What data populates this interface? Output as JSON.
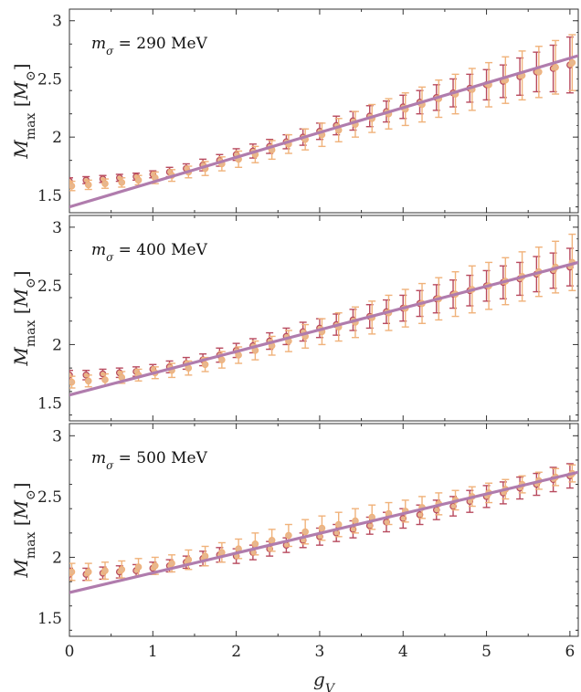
{
  "chart_data": [
    {
      "type": "scatter",
      "annotation": {
        "var": "m",
        "sub": "σ",
        "text": " = 290 MeV"
      },
      "ylabel": {
        "var": "M",
        "sub": "max",
        "unit_open": " [",
        "unit_var": "M",
        "unit_sub": "⊙",
        "unit_close": "]"
      },
      "xlim": [
        0,
        6.1
      ],
      "ylim": [
        1.35,
        3.1
      ],
      "yticks": [
        "1.5",
        "2",
        "2.5",
        "3"
      ],
      "fit_line": {
        "x": [
          0,
          6.1
        ],
        "y": [
          1.4,
          2.7
        ]
      },
      "series": [
        {
          "x": [
            0,
            0.2,
            0.4,
            0.6,
            0.8,
            1.0,
            1.2,
            1.4,
            1.6,
            1.8,
            2.0,
            2.2,
            2.4,
            2.6,
            2.8,
            3.0,
            3.2,
            3.4,
            3.6,
            3.8,
            4.0,
            4.2,
            4.4,
            4.6,
            4.8,
            5.0,
            5.2,
            5.4,
            5.6,
            5.8,
            6.0
          ],
          "y": [
            1.62,
            1.63,
            1.64,
            1.65,
            1.66,
            1.68,
            1.7,
            1.73,
            1.76,
            1.8,
            1.85,
            1.88,
            1.92,
            1.96,
            2.0,
            2.05,
            2.1,
            2.14,
            2.18,
            2.22,
            2.26,
            2.3,
            2.34,
            2.38,
            2.42,
            2.45,
            2.48,
            2.52,
            2.56,
            2.59,
            2.62
          ],
          "err": [
            0.03,
            0.03,
            0.03,
            0.03,
            0.03,
            0.03,
            0.04,
            0.04,
            0.05,
            0.05,
            0.05,
            0.06,
            0.06,
            0.06,
            0.07,
            0.07,
            0.08,
            0.08,
            0.09,
            0.09,
            0.1,
            0.1,
            0.11,
            0.12,
            0.12,
            0.13,
            0.14,
            0.16,
            0.17,
            0.2,
            0.24
          ]
        },
        {
          "x": [
            0,
            0.2,
            0.4,
            0.6,
            0.8,
            1.0,
            1.2,
            1.4,
            1.6,
            1.8,
            2.0,
            2.2,
            2.4,
            2.6,
            2.8,
            3.0,
            3.2,
            3.4,
            3.6,
            3.8,
            4.0,
            4.2,
            4.4,
            4.6,
            4.8,
            5.0,
            5.2,
            5.4,
            5.6,
            5.8,
            6.0
          ],
          "y": [
            1.58,
            1.59,
            1.6,
            1.61,
            1.63,
            1.65,
            1.67,
            1.7,
            1.73,
            1.77,
            1.81,
            1.85,
            1.89,
            1.94,
            1.98,
            2.02,
            2.06,
            2.11,
            2.16,
            2.2,
            2.24,
            2.28,
            2.33,
            2.37,
            2.41,
            2.45,
            2.49,
            2.53,
            2.56,
            2.6,
            2.64
          ],
          "err": [
            0.04,
            0.04,
            0.04,
            0.04,
            0.04,
            0.05,
            0.05,
            0.05,
            0.06,
            0.06,
            0.07,
            0.07,
            0.08,
            0.08,
            0.09,
            0.1,
            0.1,
            0.11,
            0.12,
            0.13,
            0.14,
            0.15,
            0.16,
            0.17,
            0.18,
            0.19,
            0.2,
            0.21,
            0.22,
            0.23,
            0.24
          ]
        }
      ]
    },
    {
      "type": "scatter",
      "annotation": {
        "var": "m",
        "sub": "σ",
        "text": " = 400 MeV"
      },
      "ylabel": {
        "var": "M",
        "sub": "max",
        "unit_open": " [",
        "unit_var": "M",
        "unit_sub": "⊙",
        "unit_close": "]"
      },
      "xlim": [
        0,
        6.1
      ],
      "ylim": [
        1.35,
        3.1
      ],
      "yticks": [
        "1.5",
        "2",
        "2.5",
        "3"
      ],
      "fit_line": {
        "x": [
          0,
          6.1
        ],
        "y": [
          1.57,
          2.7
        ]
      },
      "series": [
        {
          "x": [
            0,
            0.2,
            0.4,
            0.6,
            0.8,
            1.0,
            1.2,
            1.4,
            1.6,
            1.8,
            2.0,
            2.2,
            2.4,
            2.6,
            2.8,
            3.0,
            3.2,
            3.4,
            3.6,
            3.8,
            4.0,
            4.2,
            4.4,
            4.6,
            4.8,
            5.0,
            5.2,
            5.4,
            5.6,
            5.8,
            6.0
          ],
          "y": [
            1.74,
            1.74,
            1.75,
            1.76,
            1.77,
            1.79,
            1.81,
            1.84,
            1.87,
            1.91,
            1.95,
            1.99,
            2.03,
            2.07,
            2.11,
            2.14,
            2.17,
            2.21,
            2.24,
            2.28,
            2.31,
            2.35,
            2.39,
            2.43,
            2.46,
            2.5,
            2.53,
            2.56,
            2.6,
            2.63,
            2.66
          ],
          "err": [
            0.04,
            0.04,
            0.04,
            0.04,
            0.04,
            0.04,
            0.05,
            0.05,
            0.05,
            0.06,
            0.06,
            0.06,
            0.07,
            0.07,
            0.08,
            0.08,
            0.09,
            0.09,
            0.1,
            0.1,
            0.11,
            0.11,
            0.12,
            0.12,
            0.13,
            0.13,
            0.14,
            0.14,
            0.15,
            0.15,
            0.16
          ]
        },
        {
          "x": [
            0,
            0.2,
            0.4,
            0.6,
            0.8,
            1.0,
            1.2,
            1.4,
            1.6,
            1.8,
            2.0,
            2.2,
            2.4,
            2.6,
            2.8,
            3.0,
            3.2,
            3.4,
            3.6,
            3.8,
            4.0,
            4.2,
            4.4,
            4.6,
            4.8,
            5.0,
            5.2,
            5.4,
            5.6,
            5.8,
            6.0
          ],
          "y": [
            1.68,
            1.69,
            1.7,
            1.72,
            1.74,
            1.76,
            1.78,
            1.8,
            1.83,
            1.87,
            1.91,
            1.95,
            1.99,
            2.03,
            2.07,
            2.11,
            2.15,
            2.19,
            2.23,
            2.27,
            2.31,
            2.35,
            2.39,
            2.43,
            2.47,
            2.5,
            2.54,
            2.58,
            2.62,
            2.66,
            2.7
          ],
          "err": [
            0.05,
            0.05,
            0.05,
            0.05,
            0.05,
            0.05,
            0.06,
            0.06,
            0.06,
            0.07,
            0.07,
            0.08,
            0.08,
            0.09,
            0.1,
            0.11,
            0.12,
            0.13,
            0.14,
            0.15,
            0.16,
            0.17,
            0.18,
            0.19,
            0.2,
            0.2,
            0.2,
            0.21,
            0.21,
            0.22,
            0.24
          ]
        }
      ]
    },
    {
      "type": "scatter",
      "annotation": {
        "var": "m",
        "sub": "σ",
        "text": " = 500 MeV"
      },
      "ylabel": {
        "var": "M",
        "sub": "max",
        "unit_open": " [",
        "unit_var": "M",
        "unit_sub": "⊙",
        "unit_close": "]"
      },
      "xlabel": {
        "var": "g",
        "sub": "V"
      },
      "xlim": [
        0,
        6.1
      ],
      "ylim": [
        1.35,
        3.1
      ],
      "xticks": [
        "0",
        "1",
        "2",
        "3",
        "4",
        "5",
        "6"
      ],
      "yticks": [
        "1.5",
        "2",
        "2.5",
        "3"
      ],
      "fit_line": {
        "x": [
          0,
          6.1
        ],
        "y": [
          1.71,
          2.7
        ]
      },
      "series": [
        {
          "x": [
            0,
            0.2,
            0.4,
            0.6,
            0.8,
            1.0,
            1.2,
            1.4,
            1.6,
            1.8,
            2.0,
            2.2,
            2.4,
            2.6,
            2.8,
            3.0,
            3.2,
            3.4,
            3.6,
            3.8,
            4.0,
            4.2,
            4.4,
            4.6,
            4.8,
            5.0,
            5.2,
            5.4,
            5.6,
            5.8,
            6.0
          ],
          "y": [
            1.86,
            1.86,
            1.87,
            1.88,
            1.89,
            1.91,
            1.93,
            1.96,
            1.99,
            2.02,
            2.01,
            2.04,
            2.07,
            2.1,
            2.14,
            2.17,
            2.2,
            2.23,
            2.26,
            2.29,
            2.32,
            2.35,
            2.39,
            2.42,
            2.46,
            2.5,
            2.53,
            2.57,
            2.6,
            2.64,
            2.67
          ],
          "err": [
            0.05,
            0.05,
            0.05,
            0.05,
            0.05,
            0.05,
            0.05,
            0.05,
            0.06,
            0.06,
            0.06,
            0.06,
            0.06,
            0.06,
            0.06,
            0.07,
            0.07,
            0.07,
            0.07,
            0.08,
            0.08,
            0.08,
            0.08,
            0.08,
            0.09,
            0.09,
            0.09,
            0.09,
            0.09,
            0.1,
            0.1
          ]
        },
        {
          "x": [
            0,
            0.2,
            0.4,
            0.6,
            0.8,
            1.0,
            1.2,
            1.4,
            1.6,
            1.8,
            2.0,
            2.2,
            2.4,
            2.6,
            2.8,
            3.0,
            3.2,
            3.4,
            3.6,
            3.8,
            4.0,
            4.2,
            4.4,
            4.6,
            4.8,
            5.0,
            5.2,
            5.4,
            5.6,
            5.8,
            6.0
          ],
          "y": [
            1.88,
            1.88,
            1.89,
            1.9,
            1.92,
            1.93,
            1.95,
            1.98,
            2.01,
            2.04,
            2.07,
            2.11,
            2.14,
            2.18,
            2.21,
            2.24,
            2.27,
            2.3,
            2.33,
            2.36,
            2.38,
            2.41,
            2.44,
            2.47,
            2.5,
            2.53,
            2.56,
            2.6,
            2.63,
            2.66,
            2.69
          ],
          "err": [
            0.07,
            0.07,
            0.07,
            0.07,
            0.07,
            0.07,
            0.07,
            0.08,
            0.08,
            0.08,
            0.08,
            0.09,
            0.09,
            0.09,
            0.1,
            0.1,
            0.1,
            0.1,
            0.1,
            0.09,
            0.09,
            0.09,
            0.09,
            0.08,
            0.08,
            0.08,
            0.08,
            0.07,
            0.07,
            0.07,
            0.07
          ]
        }
      ]
    }
  ],
  "style": {
    "series_colors": [
      "#b84a5e",
      "#f0b27a"
    ],
    "marker_fill": "#e7b78f",
    "line_color": "#b07cad"
  }
}
